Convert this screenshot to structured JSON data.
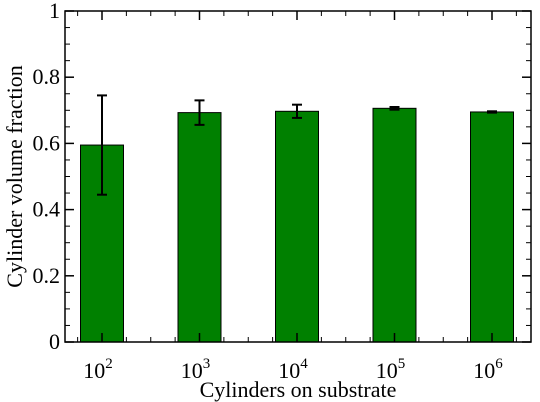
{
  "chart_data": {
    "type": "bar",
    "categories": [
      {
        "base": "10",
        "exp": "2"
      },
      {
        "base": "10",
        "exp": "3"
      },
      {
        "base": "10",
        "exp": "4"
      },
      {
        "base": "10",
        "exp": "5"
      },
      {
        "base": "10",
        "exp": "6"
      }
    ],
    "values": [
      0.595,
      0.693,
      0.697,
      0.706,
      0.695
    ],
    "errors": [
      0.15,
      0.037,
      0.02,
      0.004,
      0.002
    ],
    "xlabel": "Cylinders on substrate",
    "ylabel": "Cylinder volume fraction",
    "ylim": [
      0,
      1
    ],
    "y_ticks": [
      {
        "value": 0,
        "label": "0"
      },
      {
        "value": 0.2,
        "label": "0.2"
      },
      {
        "value": 0.4,
        "label": "0.4"
      },
      {
        "value": 0.6,
        "label": "0.6"
      },
      {
        "value": 0.8,
        "label": "0.8"
      },
      {
        "value": 1,
        "label": "1"
      }
    ],
    "bar_color": "#008000",
    "grid": false,
    "legend": "none"
  }
}
